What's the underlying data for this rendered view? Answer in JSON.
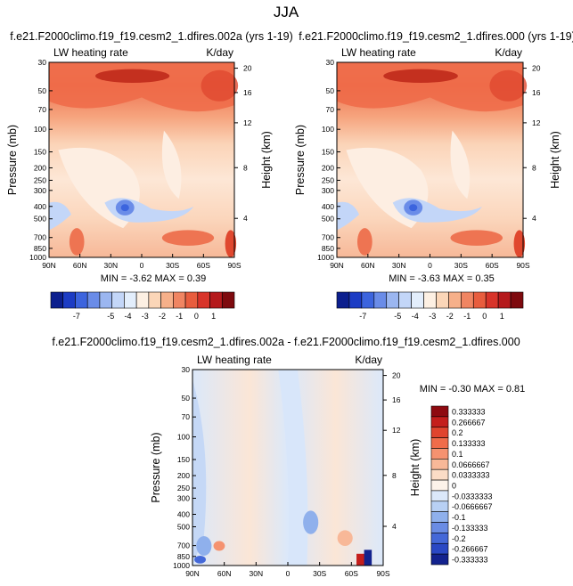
{
  "title": "JJA",
  "panels": [
    {
      "title": "f.e21.F2000climo.f19_f19.cesm2_1.dfires.002a (yrs 1-19)",
      "left_label": "LW heating rate",
      "right_label": "K/day",
      "ylabel": "Pressure (mb)",
      "ylabel2": "Height (km)",
      "minmax": "MIN = -3.62   MAX =  0.39"
    },
    {
      "title": "f.e21.F2000climo.f19_f19.cesm2_1.dfires.000 (yrs 1-19)",
      "left_label": "LW heating rate",
      "right_label": "K/day",
      "ylabel": "Pressure (mb)",
      "ylabel2": "Height (km)",
      "minmax": "MIN = -3.63   MAX =  0.35"
    },
    {
      "title": "f.e21.F2000climo.f19_f19.cesm2_1.dfires.002a - f.e21.F2000climo.f19_f19.cesm2_1.dfires.000",
      "left_label": "LW heating rate",
      "right_label": "K/day",
      "ylabel": "Pressure (mb)",
      "ylabel2": "Height (km)",
      "minmax": "MIN = -0.30   MAX =  0.81"
    }
  ],
  "chart_data": [
    {
      "type": "heatmap",
      "x_ticks": [
        "90N",
        "60N",
        "30N",
        "0",
        "30S",
        "60S",
        "90S"
      ],
      "y_ticks": [
        "30",
        "50",
        "70",
        "100",
        "150",
        "200",
        "250",
        "300",
        "400",
        "500",
        "700",
        "850",
        "1000"
      ],
      "y2_ticks": [
        "20",
        "16",
        "12",
        "8",
        "4"
      ],
      "colorbar_labels": [
        "-7",
        "-5",
        "-4",
        "-3",
        "-2",
        "-1",
        "0",
        "1"
      ],
      "colorbar_colors": [
        "#0c1f8e",
        "#1c3cc4",
        "#3c64de",
        "#6a8ce8",
        "#9bb6f0",
        "#c3d6f8",
        "#e3eefc",
        "#fdf0e3",
        "#fbd6b8",
        "#f6b08a",
        "#f08562",
        "#e85d3e",
        "#d8342a",
        "#b51a1c",
        "#7e0a0e"
      ]
    },
    {
      "type": "heatmap",
      "x_ticks": [
        "90N",
        "60N",
        "30N",
        "0",
        "30S",
        "60S",
        "90S"
      ],
      "y_ticks": [
        "30",
        "50",
        "70",
        "100",
        "150",
        "200",
        "250",
        "300",
        "400",
        "500",
        "700",
        "850",
        "1000"
      ],
      "y2_ticks": [
        "20",
        "16",
        "12",
        "8",
        "4"
      ],
      "colorbar_labels": [
        "-7",
        "-5",
        "-4",
        "-3",
        "-2",
        "-1",
        "0",
        "1"
      ],
      "colorbar_colors": [
        "#0c1f8e",
        "#1c3cc4",
        "#3c64de",
        "#6a8ce8",
        "#9bb6f0",
        "#c3d6f8",
        "#e3eefc",
        "#fdf0e3",
        "#fbd6b8",
        "#f6b08a",
        "#f08562",
        "#e85d3e",
        "#d8342a",
        "#b51a1c",
        "#7e0a0e"
      ]
    },
    {
      "type": "heatmap",
      "x_ticks": [
        "90N",
        "60N",
        "30N",
        "0",
        "30S",
        "60S",
        "90S"
      ],
      "y_ticks": [
        "30",
        "50",
        "70",
        "100",
        "150",
        "200",
        "250",
        "300",
        "400",
        "500",
        "700",
        "850",
        "1000"
      ],
      "y2_ticks": [
        "20",
        "16",
        "12",
        "8",
        "4"
      ],
      "colorbar_labels": [
        "0.333333",
        "0.266667",
        "0.2",
        "0.133333",
        "0.1",
        "0.0666667",
        "0.0333333",
        "0",
        "-0.0333333",
        "-0.0666667",
        "-0.1",
        "-0.133333",
        "-0.2",
        "-0.266667",
        "-0.333333"
      ],
      "colorbar_colors": [
        "#8e0a10",
        "#c41e1c",
        "#e0442e",
        "#f06c4a",
        "#f59270",
        "#f8b898",
        "#fbdcc6",
        "#fdf3ea",
        "#dbe8fa",
        "#b8d0f4",
        "#8fb0ec",
        "#6a8ce4",
        "#4468d8",
        "#2a48c4",
        "#13228e"
      ]
    }
  ]
}
